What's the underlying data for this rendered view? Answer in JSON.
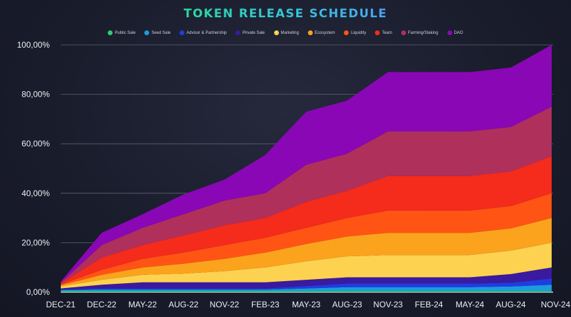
{
  "title": "TOKEN RELEASE SCHEDULE",
  "chart_data": {
    "type": "area",
    "stacked": true,
    "title": "TOKEN RELEASE SCHEDULE",
    "xlabel": "",
    "ylabel": "",
    "ylim": [
      0,
      100
    ],
    "yticks": [
      "0,00%",
      "20,00%",
      "40,00%",
      "60,00%",
      "80,00%",
      "100,00%"
    ],
    "grid": true,
    "legend_position": "top-center",
    "categories": [
      "DEC-21",
      "DEC-22",
      "MAY-22",
      "AUG-22",
      "NOV-22",
      "FEB-23",
      "MAY-23",
      "AUG-23",
      "NOV-23",
      "FEB-24",
      "MAY-24",
      "AUG-24",
      "NOV-24"
    ],
    "series": [
      {
        "name": "Public Sale",
        "color": "#2ecc71",
        "values": [
          0.5,
          0.5,
          0.5,
          0.5,
          0.5,
          0.5,
          0.5,
          0.5,
          0.5,
          0.5,
          0.5,
          0.5,
          0.5
        ]
      },
      {
        "name": "Seed Sale",
        "color": "#1e9be0",
        "values": [
          0.3,
          0.5,
          0.5,
          0.5,
          0.5,
          0.5,
          1.0,
          1.5,
          1.5,
          1.5,
          1.5,
          1.8,
          2.5
        ]
      },
      {
        "name": "Advisor & Partnership",
        "color": "#1f3de0",
        "values": [
          0.3,
          0.5,
          0.5,
          0.5,
          0.5,
          0.5,
          1.0,
          1.5,
          1.5,
          1.5,
          1.5,
          1.5,
          2.5
        ]
      },
      {
        "name": "Private Sale",
        "color": "#3a1aa0",
        "values": [
          0.4,
          1.5,
          2.5,
          2.5,
          2.5,
          2.5,
          2.5,
          2.5,
          2.5,
          2.5,
          2.5,
          3.5,
          4.5
        ]
      },
      {
        "name": "Marketing",
        "color": "#fdd250",
        "values": [
          0.8,
          2.0,
          3.0,
          3.5,
          4.5,
          6.0,
          7.5,
          8.5,
          9.0,
          9.0,
          9.0,
          9.5,
          10.0
        ]
      },
      {
        "name": "Ecosystem",
        "color": "#fba31c",
        "values": [
          0.5,
          2.0,
          3.0,
          4.0,
          5.0,
          6.0,
          7.0,
          8.0,
          9.0,
          9.0,
          9.0,
          9.0,
          10.0
        ]
      },
      {
        "name": "Liquidity",
        "color": "#ff5414",
        "values": [
          0.3,
          2.0,
          3.5,
          4.5,
          5.5,
          6.0,
          6.5,
          7.5,
          9.0,
          9.0,
          9.0,
          9.0,
          10.0
        ]
      },
      {
        "name": "Team",
        "color": "#f52b1c",
        "values": [
          0.4,
          5.0,
          5.5,
          7.0,
          8.0,
          8.0,
          10.5,
          11.0,
          14.0,
          14.0,
          14.0,
          14.0,
          15.0
        ]
      },
      {
        "name": "Farming/Staking",
        "color": "#b0305c",
        "values": [
          0.3,
          5.0,
          7.0,
          8.5,
          10.0,
          10.0,
          15.0,
          15.0,
          18.0,
          18.0,
          18.0,
          18.0,
          20.0
        ]
      },
      {
        "name": "DAO",
        "color": "#8a07b5",
        "values": [
          0.5,
          5.0,
          5.5,
          8.0,
          8.5,
          15.5,
          21.5,
          21.5,
          24.0,
          24.0,
          24.0,
          24.0,
          25.0
        ]
      }
    ]
  }
}
